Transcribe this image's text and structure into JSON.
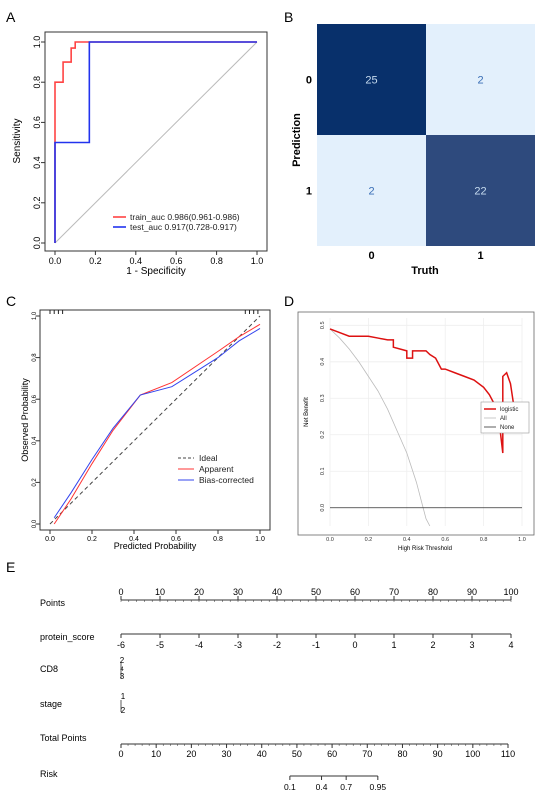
{
  "panels": {
    "A": {
      "label": "A",
      "chart_data": {
        "type": "line",
        "xlabel": "1 - Specificity",
        "ylabel": "Sensitivity",
        "xlim": [
          0,
          1
        ],
        "ylim": [
          0,
          1
        ],
        "xticks": [
          "0.0",
          "0.2",
          "0.4",
          "0.6",
          "0.8",
          "1.0"
        ],
        "yticks": [
          "0.0",
          "0.2",
          "0.4",
          "0.6",
          "0.8",
          "1.0"
        ],
        "legend_position": "bottom-right",
        "series": [
          {
            "name": "train_auc",
            "auc_text": "0.986(0.961-0.986)",
            "color": "#ff4444",
            "x": [
              0,
              0,
              0.04,
              0.04,
              0.08,
              0.08,
              0.1,
              0.1,
              1
            ],
            "y": [
              0,
              0.8,
              0.8,
              0.9,
              0.9,
              0.97,
              0.97,
              1,
              1
            ]
          },
          {
            "name": "test_auc",
            "auc_text": "0.917(0.728-0.917)",
            "color": "#2233ee",
            "x": [
              0,
              0,
              0.17,
              0.17,
              1
            ],
            "y": [
              0,
              0.5,
              0.5,
              1,
              1
            ]
          }
        ],
        "reference_color": "#bbbbbb"
      }
    },
    "B": {
      "label": "B",
      "chart_data": {
        "type": "heatmap",
        "xlabel": "Truth",
        "ylabel": "Prediction",
        "x_categories": [
          "0",
          "1"
        ],
        "y_categories": [
          "0",
          "1"
        ],
        "cells": [
          {
            "row": 0,
            "col": 0,
            "value": 25,
            "color": "#08306b",
            "text_color": "#c6dbef"
          },
          {
            "row": 0,
            "col": 1,
            "value": 2,
            "color": "#e3f0fc",
            "text_color": "#3b6fb6"
          },
          {
            "row": 1,
            "col": 0,
            "value": 2,
            "color": "#e3f0fc",
            "text_color": "#3b6fb6"
          },
          {
            "row": 1,
            "col": 1,
            "value": 22,
            "color": "#2e4a7d",
            "text_color": "#c6dbef"
          }
        ]
      }
    },
    "C": {
      "label": "C",
      "chart_data": {
        "type": "line",
        "xlabel": "Predicted Probability",
        "ylabel": "Observed Probability",
        "xlim": [
          0,
          1
        ],
        "ylim": [
          0,
          1
        ],
        "xticks": [
          "0.0",
          "0.2",
          "0.4",
          "0.6",
          "0.8",
          "1.0"
        ],
        "yticks": [
          "0.0",
          "0.2",
          "0.4",
          "0.6",
          "0.8",
          "1.0"
        ],
        "legend_position": "bottom-right",
        "series": [
          {
            "name": "Ideal",
            "color": "#444444",
            "dash": true,
            "x": [
              0,
              1
            ],
            "y": [
              0,
              1
            ]
          },
          {
            "name": "Apparent",
            "color": "#ff3333",
            "dash": false,
            "x": [
              0.02,
              0.1,
              0.2,
              0.3,
              0.43,
              0.58,
              0.8,
              0.9,
              1.0
            ],
            "y": [
              0.0,
              0.12,
              0.29,
              0.45,
              0.62,
              0.68,
              0.83,
              0.9,
              0.96
            ]
          },
          {
            "name": "Bias-corrected",
            "color": "#3344ee",
            "dash": false,
            "x": [
              0.02,
              0.1,
              0.2,
              0.3,
              0.43,
              0.58,
              0.8,
              0.9,
              1.0
            ],
            "y": [
              0.03,
              0.15,
              0.31,
              0.46,
              0.62,
              0.66,
              0.8,
              0.88,
              0.94
            ]
          }
        ],
        "rug": [
          0.0,
          0.02,
          0.04,
          0.06,
          0.93,
          0.95,
          0.97,
          0.99
        ]
      }
    },
    "D": {
      "label": "D",
      "chart_data": {
        "type": "line",
        "xlabel": "High Risk Threshold",
        "ylabel": "Net Benefit",
        "xlim": [
          0,
          1
        ],
        "ylim": [
          -0.05,
          0.52
        ],
        "xticks": [
          "0.0",
          "0.2",
          "0.4",
          "0.6",
          "0.8",
          "1.0"
        ],
        "yticks": [
          "0.0",
          "0.1",
          "0.2",
          "0.3",
          "0.4",
          "0.5"
        ],
        "ytick_values": [
          0,
          0.1,
          0.2,
          0.3,
          0.4,
          0.5
        ],
        "legend_position": "right",
        "series": [
          {
            "name": "logistic",
            "color": "#dd1111",
            "x": [
              0,
              0.05,
              0.1,
              0.15,
              0.2,
              0.25,
              0.3,
              0.33,
              0.33,
              0.4,
              0.4,
              0.43,
              0.43,
              0.5,
              0.52,
              0.55,
              0.58,
              0.6,
              0.65,
              0.7,
              0.75,
              0.8,
              0.83,
              0.86,
              0.88,
              0.9,
              0.9,
              0.92,
              0.94,
              0.96
            ],
            "y": [
              0.49,
              0.48,
              0.47,
              0.47,
              0.47,
              0.465,
              0.46,
              0.46,
              0.44,
              0.43,
              0.41,
              0.41,
              0.43,
              0.43,
              0.42,
              0.41,
              0.38,
              0.38,
              0.37,
              0.36,
              0.35,
              0.33,
              0.31,
              0.28,
              0.24,
              0.15,
              0.36,
              0.37,
              0.34,
              0.27
            ]
          },
          {
            "name": "All",
            "color": "#bbbbbb",
            "x": [
              0,
              0.05,
              0.1,
              0.15,
              0.2,
              0.25,
              0.3,
              0.35,
              0.4,
              0.45,
              0.5,
              0.52
            ],
            "y": [
              0.49,
              0.465,
              0.435,
              0.4,
              0.36,
              0.32,
              0.27,
              0.21,
              0.15,
              0.07,
              -0.03,
              -0.08
            ]
          },
          {
            "name": "None",
            "color": "#333333",
            "x": [
              0,
              1
            ],
            "y": [
              0,
              0
            ]
          }
        ]
      }
    },
    "E": {
      "label": "E",
      "chart_data": {
        "type": "nomogram",
        "rows": [
          {
            "name": "Points",
            "ticks": [
              "0",
              "10",
              "20",
              "30",
              "40",
              "50",
              "60",
              "70",
              "80",
              "90",
              "100"
            ],
            "positions": [
              0,
              10,
              20,
              30,
              40,
              50,
              60,
              70,
              80,
              90,
              100
            ]
          },
          {
            "name": "protein_score",
            "ticks": [
              "-6",
              "-5",
              "-4",
              "-3",
              "-2",
              "-1",
              "0",
              "1",
              "2",
              "3",
              "4"
            ],
            "positions": [
              0,
              10,
              20,
              30,
              40,
              50,
              60,
              70,
              80,
              90,
              100
            ]
          },
          {
            "name": "CD8",
            "levels": [
              "2",
              "4",
              "3"
            ]
          },
          {
            "name": "stage",
            "levels": [
              "1",
              "2"
            ]
          },
          {
            "name": "Total Points",
            "ticks": [
              "0",
              "10",
              "20",
              "30",
              "40",
              "50",
              "60",
              "70",
              "80",
              "90",
              "100",
              "110"
            ],
            "positions": [
              0,
              10,
              20,
              30,
              40,
              50,
              60,
              70,
              80,
              90,
              100,
              110
            ]
          },
          {
            "name": "Risk",
            "ticks": [
              "0.1",
              "0.4",
              "0.7",
              "0.95"
            ],
            "positions": [
              48,
              57,
              64,
              73
            ]
          }
        ]
      }
    }
  }
}
